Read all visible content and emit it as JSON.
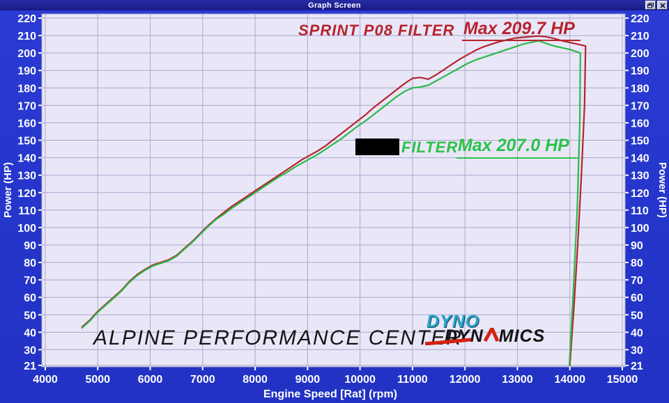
{
  "window": {
    "title": "Graph Screen",
    "buttons": {
      "restore": "restore",
      "close": "close"
    }
  },
  "annotations": {
    "red_series_label": "SPRINT P08 FILTER",
    "red_series_max": "Max 209.7 HP",
    "green_series_label": "FILTER",
    "green_series_max": "Max 207.0 HP",
    "watermark": "ALPINE PERFORMANCE CENTER"
  },
  "logo": {
    "line1": "DYNO",
    "line2_a": "DYN",
    "line2_b": "MICS"
  },
  "colors": {
    "window_bg": "#2435cd",
    "titlebar_bg": "#1b1e8f",
    "plot_bg": "#e9e7f7",
    "grid": "#a9a7cb",
    "axis_text": "#ffffff",
    "red_series": "#b6232e",
    "green_series": "#2db84a",
    "logo_cyan": "#27a7cf",
    "logo_red": "#d42310",
    "watermark_black": "#141414"
  },
  "chart_data": {
    "type": "line",
    "title": "",
    "xlabel": "Engine Speed [Rat] (rpm)",
    "ylabel_left": "Power (HP)",
    "ylabel_right": "Power (HP)",
    "xlim": [
      4000,
      15000
    ],
    "ylim": [
      21,
      220
    ],
    "x_ticks": [
      4000,
      5000,
      6000,
      7000,
      8000,
      9000,
      10000,
      11000,
      12000,
      13000,
      14000,
      15000
    ],
    "y_ticks": [
      220,
      210,
      200,
      190,
      180,
      170,
      160,
      150,
      140,
      130,
      120,
      110,
      100,
      90,
      80,
      70,
      60,
      50,
      40,
      30,
      21
    ],
    "grid": true,
    "legend_position": "annotations-inside",
    "series": [
      {
        "name": "SPRINT P08 FILTER",
        "color": "#b6232e",
        "max_hp": 209.7,
        "max_rpm": 13400,
        "points": [
          [
            4700,
            43
          ],
          [
            4850,
            47
          ],
          [
            5000,
            52
          ],
          [
            5150,
            56
          ],
          [
            5300,
            60
          ],
          [
            5450,
            64
          ],
          [
            5600,
            69
          ],
          [
            5750,
            73
          ],
          [
            5900,
            76
          ],
          [
            6050,
            78.5
          ],
          [
            6200,
            80
          ],
          [
            6350,
            81.5
          ],
          [
            6500,
            84
          ],
          [
            6650,
            88
          ],
          [
            6800,
            92
          ],
          [
            6950,
            96.5
          ],
          [
            7100,
            101
          ],
          [
            7250,
            105
          ],
          [
            7400,
            108.5
          ],
          [
            7550,
            112
          ],
          [
            7700,
            115
          ],
          [
            7850,
            118
          ],
          [
            8000,
            121
          ],
          [
            8150,
            124
          ],
          [
            8300,
            127
          ],
          [
            8450,
            130
          ],
          [
            8600,
            133
          ],
          [
            8750,
            136
          ],
          [
            8900,
            139
          ],
          [
            9050,
            141.5
          ],
          [
            9200,
            144
          ],
          [
            9350,
            147
          ],
          [
            9500,
            150.5
          ],
          [
            9650,
            154
          ],
          [
            9800,
            157.5
          ],
          [
            9950,
            161
          ],
          [
            10100,
            164.5
          ],
          [
            10250,
            168.5
          ],
          [
            10400,
            172
          ],
          [
            10550,
            175.5
          ],
          [
            10700,
            179
          ],
          [
            10850,
            182.5
          ],
          [
            11000,
            185.5
          ],
          [
            11150,
            186
          ],
          [
            11300,
            185
          ],
          [
            11450,
            187.5
          ],
          [
            11600,
            190.5
          ],
          [
            11750,
            193.5
          ],
          [
            11900,
            196.5
          ],
          [
            12050,
            199
          ],
          [
            12200,
            201.5
          ],
          [
            12350,
            203.5
          ],
          [
            12500,
            205
          ],
          [
            12650,
            206.5
          ],
          [
            12800,
            207.5
          ],
          [
            12950,
            208.5
          ],
          [
            13100,
            209
          ],
          [
            13250,
            209.4
          ],
          [
            13400,
            209.7
          ],
          [
            13550,
            209.3
          ],
          [
            13700,
            208.3
          ],
          [
            13850,
            207
          ],
          [
            14000,
            206
          ],
          [
            14150,
            205
          ],
          [
            14300,
            204
          ],
          [
            14280,
            170
          ],
          [
            14220,
            130
          ],
          [
            14150,
            90
          ],
          [
            14080,
            55
          ],
          [
            14000,
            21
          ]
        ]
      },
      {
        "name": "FILTER (name redacted)",
        "color": "#2db84a",
        "max_hp": 207.0,
        "max_rpm": 13400,
        "points": [
          [
            4700,
            42.5
          ],
          [
            4850,
            46.5
          ],
          [
            5000,
            51.5
          ],
          [
            5150,
            55.5
          ],
          [
            5300,
            59.5
          ],
          [
            5450,
            63.5
          ],
          [
            5600,
            68.5
          ],
          [
            5750,
            72.5
          ],
          [
            5900,
            75.5
          ],
          [
            6050,
            78
          ],
          [
            6200,
            79.5
          ],
          [
            6350,
            81
          ],
          [
            6500,
            83.5
          ],
          [
            6650,
            87.5
          ],
          [
            6800,
            91.5
          ],
          [
            6950,
            96
          ],
          [
            7100,
            100.5
          ],
          [
            7250,
            104.5
          ],
          [
            7400,
            107.5
          ],
          [
            7550,
            111
          ],
          [
            7700,
            114
          ],
          [
            7850,
            117
          ],
          [
            8000,
            120
          ],
          [
            8150,
            123
          ],
          [
            8300,
            126
          ],
          [
            8450,
            129
          ],
          [
            8600,
            131.5
          ],
          [
            8750,
            134.5
          ],
          [
            8900,
            137
          ],
          [
            9050,
            139.5
          ],
          [
            9200,
            142
          ],
          [
            9350,
            145
          ],
          [
            9500,
            148
          ],
          [
            9650,
            151
          ],
          [
            9800,
            154.5
          ],
          [
            9950,
            158
          ],
          [
            10100,
            161
          ],
          [
            10250,
            164.5
          ],
          [
            10400,
            168
          ],
          [
            10550,
            171.5
          ],
          [
            10700,
            175
          ],
          [
            10850,
            178
          ],
          [
            11000,
            180
          ],
          [
            11150,
            180.5
          ],
          [
            11300,
            181.5
          ],
          [
            11450,
            184
          ],
          [
            11600,
            186.5
          ],
          [
            11750,
            189
          ],
          [
            11900,
            191.5
          ],
          [
            12050,
            194
          ],
          [
            12200,
            196
          ],
          [
            12350,
            197.5
          ],
          [
            12500,
            199
          ],
          [
            12650,
            200.5
          ],
          [
            12800,
            202
          ],
          [
            12950,
            203.5
          ],
          [
            13100,
            205
          ],
          [
            13250,
            206
          ],
          [
            13400,
            207
          ],
          [
            13550,
            205.5
          ],
          [
            13700,
            204
          ],
          [
            13850,
            203
          ],
          [
            14000,
            202
          ],
          [
            14100,
            201
          ],
          [
            14200,
            200
          ],
          [
            14190,
            160
          ],
          [
            14140,
            110
          ],
          [
            14060,
            60
          ],
          [
            13990,
            21
          ]
        ]
      }
    ]
  }
}
